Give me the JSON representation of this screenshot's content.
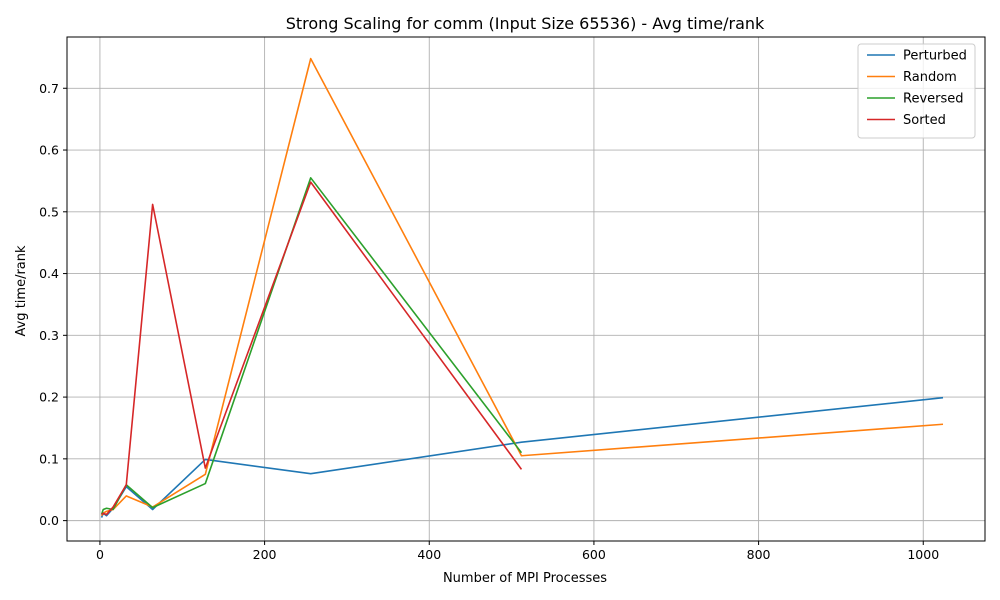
{
  "chart_data": {
    "type": "line",
    "title": "Strong Scaling for comm (Input Size 65536) - Avg time/rank",
    "xlabel": "Number of MPI Processes",
    "ylabel": "Avg time/rank",
    "xlim": [
      -40,
      1075
    ],
    "ylim": [
      -0.033,
      0.783
    ],
    "xticks": [
      0,
      200,
      400,
      600,
      800,
      1000
    ],
    "yticks": [
      0.0,
      0.1,
      0.2,
      0.3,
      0.4,
      0.5,
      0.6,
      0.7
    ],
    "grid": true,
    "legend_position": "top-right",
    "series": [
      {
        "name": "Perturbed",
        "color": "#1f77b4",
        "x": [
          2,
          4,
          8,
          16,
          32,
          64,
          128,
          256,
          512,
          1024
        ],
        "y": [
          0.005,
          0.012,
          0.008,
          0.02,
          0.055,
          0.018,
          0.099,
          0.076,
          0.127,
          0.199
        ]
      },
      {
        "name": "Random",
        "color": "#ff7f0e",
        "x": [
          2,
          4,
          8,
          16,
          32,
          64,
          128,
          256,
          512,
          1024
        ],
        "y": [
          0.008,
          0.012,
          0.015,
          0.018,
          0.04,
          0.022,
          0.075,
          0.748,
          0.105,
          0.156
        ]
      },
      {
        "name": "Reversed",
        "color": "#2ca02c",
        "x": [
          2,
          4,
          8,
          16,
          32,
          64,
          128,
          256,
          512
        ],
        "y": [
          0.01,
          0.018,
          0.02,
          0.018,
          0.058,
          0.021,
          0.06,
          0.555,
          0.11
        ]
      },
      {
        "name": "Sorted",
        "color": "#d62728",
        "x": [
          2,
          4,
          8,
          16,
          32,
          64,
          128,
          256,
          512
        ],
        "y": [
          0.01,
          0.012,
          0.01,
          0.022,
          0.058,
          0.512,
          0.085,
          0.548,
          0.083
        ]
      }
    ]
  }
}
